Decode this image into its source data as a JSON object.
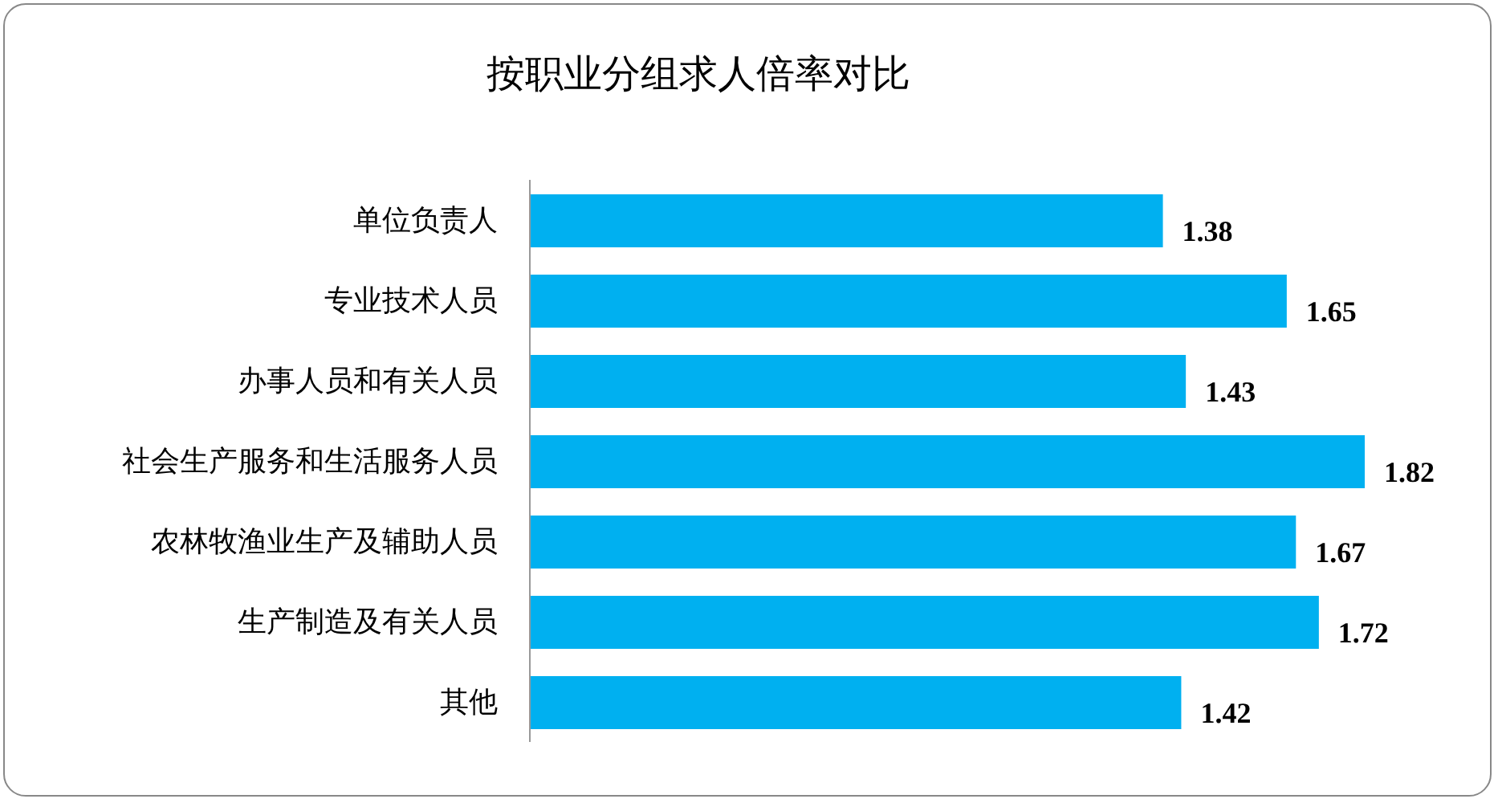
{
  "chart_data": {
    "type": "bar",
    "title": "按职业分组求人倍率对比",
    "orientation": "horizontal",
    "categories": [
      "单位负责人",
      "专业技术人员",
      "办事人员和有关人员",
      "社会生产服务和生活服务人员",
      "农林牧渔业生产及辅助人员",
      "生产制造及有关人员",
      "其他"
    ],
    "values": [
      1.38,
      1.65,
      1.43,
      1.82,
      1.67,
      1.72,
      1.42
    ],
    "color": "#00b0f0",
    "data_labels": true
  }
}
